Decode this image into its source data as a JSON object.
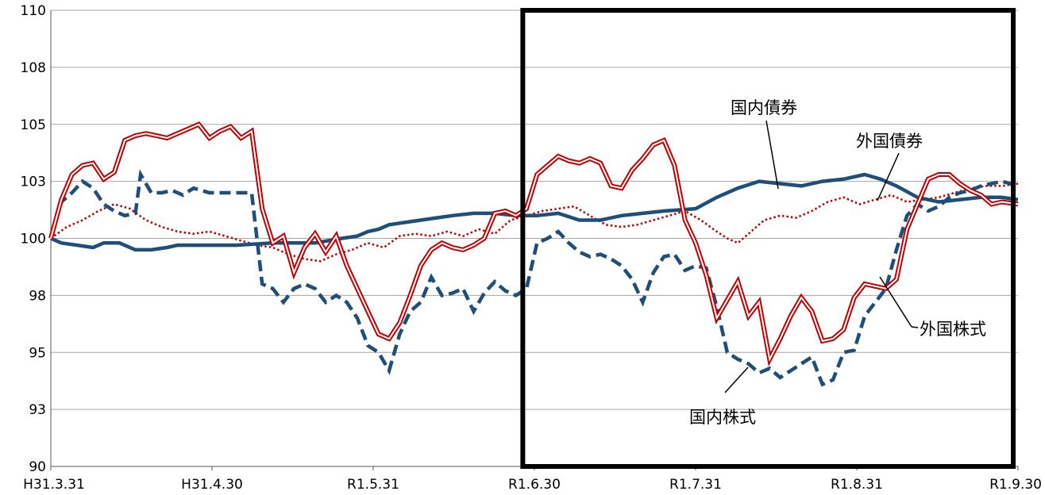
{
  "chart_data": {
    "type": "line",
    "title": "",
    "xlabel": "",
    "ylabel": "",
    "y_tick_labels": [
      "90",
      "93",
      "95",
      "98",
      "100",
      "103",
      "105",
      "108",
      "110"
    ],
    "y_tick_values": [
      90,
      92.5,
      95,
      97.5,
      100,
      102.5,
      105,
      107.5,
      110
    ],
    "ylim": [
      90,
      110
    ],
    "x_tick_labels": [
      "H31.3.31",
      "H31.4.30",
      "R1.5.31",
      "R1.6.30",
      "R1.7.31",
      "R1.8.31",
      "R1.9.30"
    ],
    "xlim_days": [
      0,
      183
    ],
    "grid": "horizontal",
    "highlight_box_day_range": [
      89,
      183
    ],
    "series": [
      {
        "name": "国内債券",
        "color": "#1F4E79",
        "style": "solid-thick",
        "points": [
          [
            0,
            100
          ],
          [
            2,
            99.8
          ],
          [
            5,
            99.7
          ],
          [
            8,
            99.6
          ],
          [
            10,
            99.8
          ],
          [
            13,
            99.8
          ],
          [
            16,
            99.5
          ],
          [
            19,
            99.5
          ],
          [
            22,
            99.6
          ],
          [
            24,
            99.7
          ],
          [
            28,
            99.7
          ],
          [
            35,
            99.7
          ],
          [
            42,
            99.8
          ],
          [
            46,
            99.8
          ],
          [
            50,
            99.8
          ],
          [
            55,
            100
          ],
          [
            58,
            100.1
          ],
          [
            60,
            100.3
          ],
          [
            62,
            100.4
          ],
          [
            64,
            100.6
          ],
          [
            67,
            100.7
          ],
          [
            70,
            100.8
          ],
          [
            73,
            100.9
          ],
          [
            76,
            101
          ],
          [
            80,
            101.1
          ],
          [
            84,
            101.1
          ],
          [
            88,
            101
          ],
          [
            92,
            101
          ],
          [
            96,
            101.1
          ],
          [
            100,
            100.8
          ],
          [
            104,
            100.8
          ],
          [
            108,
            101
          ],
          [
            112,
            101.1
          ],
          [
            116,
            101.2
          ],
          [
            122,
            101.3
          ],
          [
            126,
            101.8
          ],
          [
            130,
            102.2
          ],
          [
            134,
            102.5
          ],
          [
            138,
            102.4
          ],
          [
            142,
            102.3
          ],
          [
            146,
            102.5
          ],
          [
            150,
            102.6
          ],
          [
            154,
            102.8
          ],
          [
            157,
            102.6
          ],
          [
            160,
            102.3
          ],
          [
            164,
            101.8
          ],
          [
            168,
            101.6
          ],
          [
            172,
            101.7
          ],
          [
            176,
            101.8
          ],
          [
            180,
            101.8
          ],
          [
            183,
            101.7
          ]
        ]
      },
      {
        "name": "外国債券",
        "color": "#C00000",
        "style": "dotted",
        "points": [
          [
            0,
            100
          ],
          [
            3,
            100.5
          ],
          [
            6,
            100.8
          ],
          [
            9,
            101.2
          ],
          [
            12,
            101.5
          ],
          [
            15,
            101.3
          ],
          [
            18,
            100.8
          ],
          [
            21,
            100.5
          ],
          [
            24,
            100.3
          ],
          [
            27,
            100.2
          ],
          [
            30,
            100.3
          ],
          [
            33,
            100.1
          ],
          [
            36,
            99.9
          ],
          [
            39,
            99.7
          ],
          [
            42,
            99.6
          ],
          [
            45,
            99.3
          ],
          [
            48,
            99.1
          ],
          [
            51,
            99
          ],
          [
            54,
            99.3
          ],
          [
            57,
            99.5
          ],
          [
            60,
            99.8
          ],
          [
            63,
            99.6
          ],
          [
            66,
            100.1
          ],
          [
            69,
            100.2
          ],
          [
            72,
            100.1
          ],
          [
            75,
            100.3
          ],
          [
            78,
            100.1
          ],
          [
            81,
            100.4
          ],
          [
            84,
            100.2
          ],
          [
            87,
            100.8
          ],
          [
            90,
            101
          ],
          [
            93,
            101.2
          ],
          [
            96,
            101.3
          ],
          [
            99,
            101.4
          ],
          [
            102,
            101
          ],
          [
            105,
            100.6
          ],
          [
            108,
            100.5
          ],
          [
            111,
            100.6
          ],
          [
            114,
            100.8
          ],
          [
            117,
            101
          ],
          [
            120,
            101.2
          ],
          [
            123,
            100.8
          ],
          [
            126,
            100.3
          ],
          [
            128,
            100
          ],
          [
            130,
            99.8
          ],
          [
            132,
            100.2
          ],
          [
            135,
            100.8
          ],
          [
            138,
            101
          ],
          [
            141,
            100.9
          ],
          [
            144,
            101.2
          ],
          [
            147,
            101.6
          ],
          [
            150,
            101.8
          ],
          [
            153,
            101.5
          ],
          [
            156,
            101.7
          ],
          [
            159,
            101.9
          ],
          [
            162,
            101.6
          ],
          [
            165,
            101.7
          ],
          [
            168,
            101.8
          ],
          [
            171,
            102
          ],
          [
            174,
            102.2
          ],
          [
            177,
            102.3
          ],
          [
            180,
            102.3
          ],
          [
            183,
            102.4
          ]
        ]
      },
      {
        "name": "国内株式",
        "color": "#1F4E79",
        "style": "dashed-thick",
        "points": [
          [
            0,
            100
          ],
          [
            2,
            101.6
          ],
          [
            4,
            102
          ],
          [
            6,
            102.5
          ],
          [
            8,
            102.2
          ],
          [
            10,
            101.5
          ],
          [
            12,
            101.2
          ],
          [
            14,
            101
          ],
          [
            16,
            101.1
          ],
          [
            17,
            102.8
          ],
          [
            19,
            102
          ],
          [
            21,
            102
          ],
          [
            23,
            102.1
          ],
          [
            25,
            101.9
          ],
          [
            27,
            102.2
          ],
          [
            30,
            102
          ],
          [
            33,
            102
          ],
          [
            36,
            102
          ],
          [
            38,
            102
          ],
          [
            40,
            98
          ],
          [
            42,
            97.8
          ],
          [
            44,
            97.2
          ],
          [
            46,
            97.8
          ],
          [
            48,
            98
          ],
          [
            50,
            97.8
          ],
          [
            52,
            97.2
          ],
          [
            54,
            97.5
          ],
          [
            56,
            97.2
          ],
          [
            58,
            96.5
          ],
          [
            60,
            95.3
          ],
          [
            62,
            95
          ],
          [
            64,
            94.2
          ],
          [
            66,
            95.8
          ],
          [
            68,
            96.8
          ],
          [
            70,
            97.2
          ],
          [
            72,
            98.3
          ],
          [
            74,
            97.5
          ],
          [
            76,
            97.6
          ],
          [
            78,
            97.8
          ],
          [
            80,
            96.8
          ],
          [
            82,
            97.6
          ],
          [
            84,
            98.1
          ],
          [
            86,
            97.7
          ],
          [
            88,
            97.5
          ],
          [
            90,
            97.8
          ],
          [
            92,
            99.8
          ],
          [
            94,
            100
          ],
          [
            96,
            100.3
          ],
          [
            98,
            99.8
          ],
          [
            100,
            99.4
          ],
          [
            102,
            99.2
          ],
          [
            104,
            99.3
          ],
          [
            106,
            99.1
          ],
          [
            108,
            98.8
          ],
          [
            110,
            98.2
          ],
          [
            112,
            97.2
          ],
          [
            114,
            98.5
          ],
          [
            116,
            99.2
          ],
          [
            118,
            99.3
          ],
          [
            120,
            98.6
          ],
          [
            122,
            98.8
          ],
          [
            124,
            98.7
          ],
          [
            126,
            97
          ],
          [
            128,
            95
          ],
          [
            130,
            94.7
          ],
          [
            132,
            94.5
          ],
          [
            134,
            94.1
          ],
          [
            136,
            94.3
          ],
          [
            138,
            93.9
          ],
          [
            140,
            94.2
          ],
          [
            142,
            94.5
          ],
          [
            144,
            94.8
          ],
          [
            146,
            93.6
          ],
          [
            148,
            93.8
          ],
          [
            150,
            95
          ],
          [
            152,
            95.1
          ],
          [
            154,
            96.6
          ],
          [
            156,
            97.2
          ],
          [
            158,
            97.8
          ],
          [
            160,
            99.5
          ],
          [
            162,
            101
          ],
          [
            164,
            101.5
          ],
          [
            166,
            101.2
          ],
          [
            168,
            101.4
          ],
          [
            170,
            101.8
          ],
          [
            172,
            102
          ],
          [
            174,
            102.1
          ],
          [
            176,
            102.3
          ],
          [
            178,
            102.4
          ],
          [
            180,
            102.5
          ],
          [
            183,
            102.3
          ]
        ]
      },
      {
        "name": "外国株式",
        "color": "#C00000",
        "style": "double",
        "points": [
          [
            0,
            100
          ],
          [
            2,
            101.7
          ],
          [
            4,
            102.8
          ],
          [
            6,
            103.2
          ],
          [
            8,
            103.3
          ],
          [
            10,
            102.6
          ],
          [
            12,
            102.9
          ],
          [
            14,
            104.3
          ],
          [
            16,
            104.5
          ],
          [
            18,
            104.6
          ],
          [
            20,
            104.5
          ],
          [
            22,
            104.4
          ],
          [
            24,
            104.6
          ],
          [
            26,
            104.8
          ],
          [
            28,
            105
          ],
          [
            30,
            104.4
          ],
          [
            32,
            104.7
          ],
          [
            34,
            104.9
          ],
          [
            36,
            104.4
          ],
          [
            38,
            104.7
          ],
          [
            40,
            101.3
          ],
          [
            42,
            99.8
          ],
          [
            44,
            100.1
          ],
          [
            46,
            98.5
          ],
          [
            48,
            99.6
          ],
          [
            50,
            100.2
          ],
          [
            52,
            99.4
          ],
          [
            54,
            100.1
          ],
          [
            56,
            98.8
          ],
          [
            58,
            97.8
          ],
          [
            60,
            96.8
          ],
          [
            62,
            95.8
          ],
          [
            64,
            95.6
          ],
          [
            66,
            96.3
          ],
          [
            68,
            97.5
          ],
          [
            70,
            98.8
          ],
          [
            72,
            99.5
          ],
          [
            74,
            99.8
          ],
          [
            76,
            99.6
          ],
          [
            78,
            99.5
          ],
          [
            80,
            99.7
          ],
          [
            82,
            100
          ],
          [
            84,
            101.1
          ],
          [
            86,
            101.2
          ],
          [
            88,
            101
          ],
          [
            90,
            101.3
          ],
          [
            92,
            102.8
          ],
          [
            94,
            103.2
          ],
          [
            96,
            103.6
          ],
          [
            98,
            103.4
          ],
          [
            100,
            103.3
          ],
          [
            102,
            103.5
          ],
          [
            104,
            103.3
          ],
          [
            106,
            102.3
          ],
          [
            108,
            102.2
          ],
          [
            110,
            103
          ],
          [
            112,
            103.5
          ],
          [
            114,
            104.1
          ],
          [
            116,
            104.3
          ],
          [
            118,
            103.2
          ],
          [
            120,
            100.8
          ],
          [
            122,
            99.8
          ],
          [
            124,
            98.4
          ],
          [
            126,
            96.5
          ],
          [
            128,
            97.3
          ],
          [
            130,
            98.1
          ],
          [
            132,
            96.6
          ],
          [
            134,
            97.2
          ],
          [
            136,
            94.7
          ],
          [
            138,
            95.6
          ],
          [
            140,
            96.6
          ],
          [
            142,
            97.4
          ],
          [
            144,
            96.8
          ],
          [
            146,
            95.5
          ],
          [
            148,
            95.6
          ],
          [
            150,
            96
          ],
          [
            152,
            97.4
          ],
          [
            154,
            98
          ],
          [
            156,
            97.9
          ],
          [
            158,
            97.8
          ],
          [
            160,
            98.2
          ],
          [
            162,
            100.4
          ],
          [
            164,
            101.5
          ],
          [
            166,
            102.6
          ],
          [
            168,
            102.8
          ],
          [
            170,
            102.8
          ],
          [
            172,
            102.4
          ],
          [
            174,
            102.1
          ],
          [
            176,
            101.9
          ],
          [
            178,
            101.5
          ],
          [
            180,
            101.6
          ],
          [
            183,
            101.5
          ]
        ]
      }
    ],
    "annotations": [
      {
        "text": "国内債券",
        "target_series": "国内債券"
      },
      {
        "text": "外国債券",
        "target_series": "外国債券"
      },
      {
        "text": "外国株式",
        "target_series": "外国株式"
      },
      {
        "text": "国内株式",
        "target_series": "国内株式"
      }
    ]
  }
}
